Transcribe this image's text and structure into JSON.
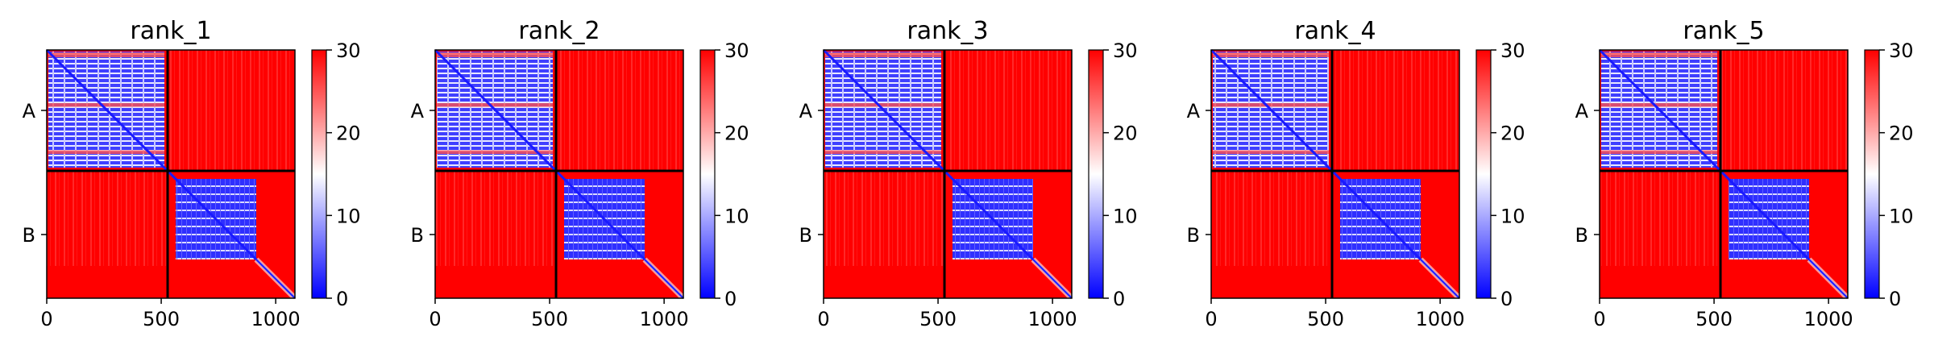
{
  "chart_data": {
    "type": "heatmap",
    "figure_kind": "pae-matrix-panels",
    "colormap": {
      "name": "bwr",
      "range": [
        0,
        30
      ],
      "stops": [
        "#0000ff",
        "#ffffff",
        "#ff0000"
      ],
      "ticks": [
        "0",
        "10",
        "20",
        "30"
      ]
    },
    "residues_total": 1084,
    "chain_boundary": 528,
    "x_ticks": [
      {
        "value": 0,
        "label": "0"
      },
      {
        "value": 500,
        "label": "500"
      },
      {
        "value": 1000,
        "label": "1000"
      }
    ],
    "chains": [
      {
        "label": "A",
        "start": 0,
        "end": 528
      },
      {
        "label": "B",
        "start": 528,
        "end": 1084
      }
    ],
    "chain_B_ordered_core_end": 915,
    "panels": [
      {
        "title": "rank_1"
      },
      {
        "title": "rank_2"
      },
      {
        "title": "rank_3"
      },
      {
        "title": "rank_4"
      },
      {
        "title": "rank_5"
      }
    ],
    "approx_values": {
      "intra_chain_ordered": 6,
      "diagonal": 1,
      "inter_chain": 30,
      "disordered_tail": 30
    }
  }
}
